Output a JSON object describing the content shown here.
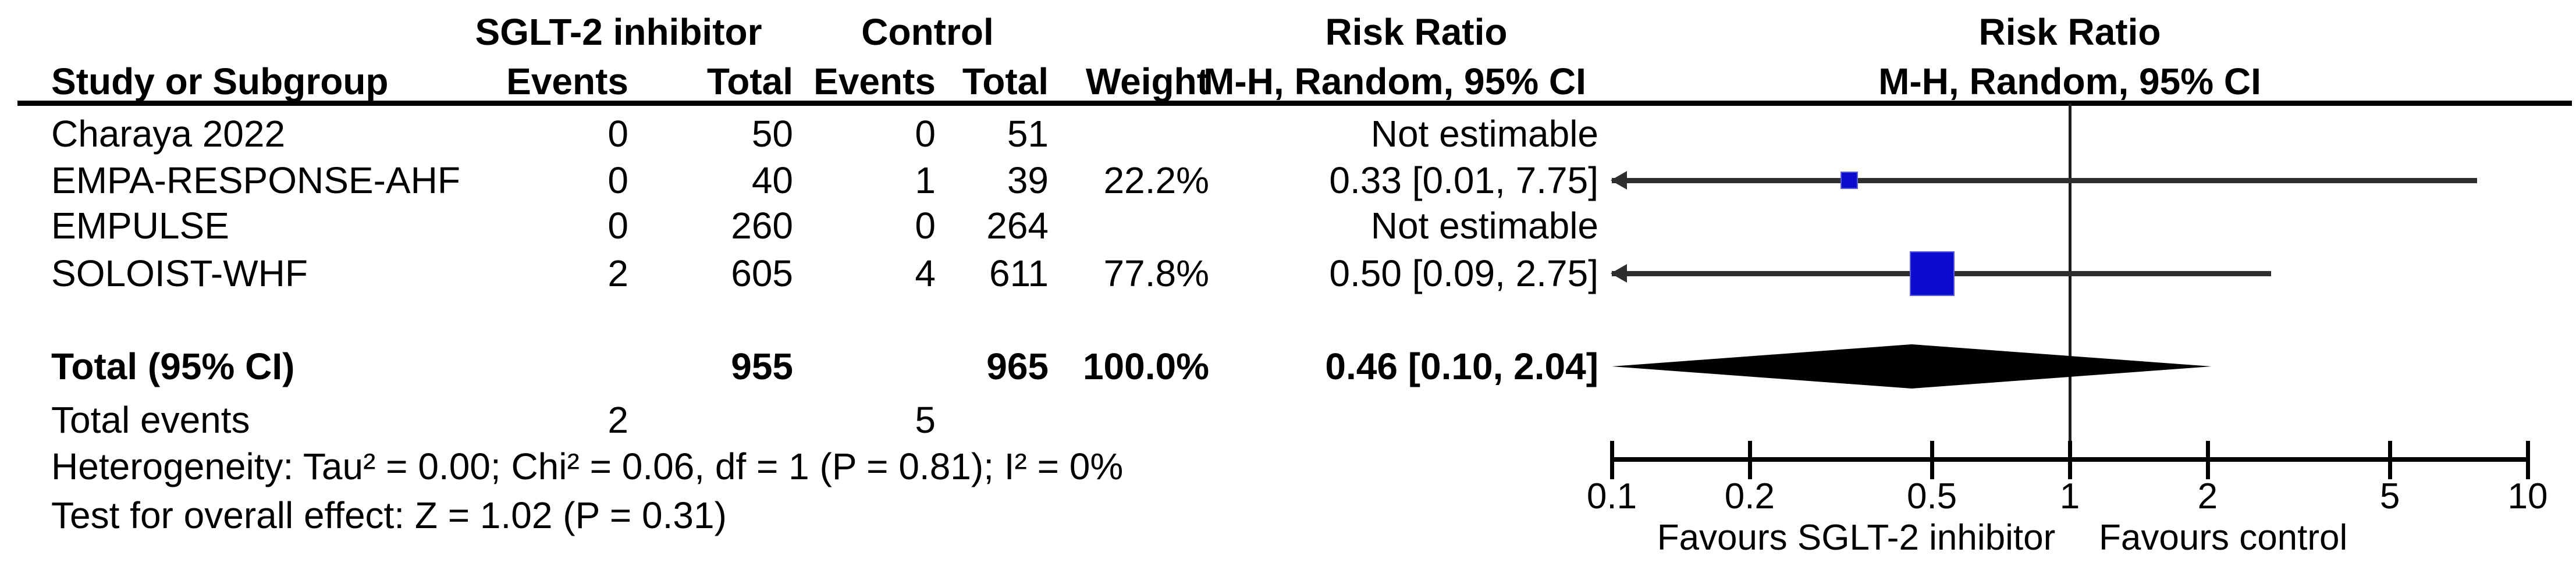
{
  "header": {
    "group1": "SGLT-2 inhibitor",
    "group2": "Control",
    "study_col": "Study or Subgroup",
    "events_col": "Events",
    "total_col": "Total",
    "weight_col": "Weight",
    "rr_title": "Risk Ratio",
    "rr_sub": "M-H, Random, 95% CI"
  },
  "chart_data": {
    "type": "forest",
    "effect_measure": "Risk Ratio",
    "method": "M-H, Random, 95% CI",
    "x_scale": "log",
    "xlim": [
      0.1,
      10
    ],
    "x_ticks": [
      0.1,
      0.2,
      0.5,
      1,
      2,
      5,
      10
    ],
    "studies": [
      {
        "name": "Charaya 2022",
        "events_tx": 0,
        "total_tx": 50,
        "events_ctrl": 0,
        "total_ctrl": 51,
        "weight_label": "",
        "weight_pct": null,
        "rr": null,
        "ci_low": null,
        "ci_high": null,
        "rr_label": "Not estimable"
      },
      {
        "name": "EMPA-RESPONSE-AHF",
        "events_tx": 0,
        "total_tx": 40,
        "events_ctrl": 1,
        "total_ctrl": 39,
        "weight_label": "22.2%",
        "weight_pct": 22.2,
        "rr": 0.33,
        "ci_low": 0.01,
        "ci_high": 7.75,
        "rr_label": "0.33 [0.01, 7.75]"
      },
      {
        "name": "EMPULSE",
        "events_tx": 0,
        "total_tx": 260,
        "events_ctrl": 0,
        "total_ctrl": 264,
        "weight_label": "",
        "weight_pct": null,
        "rr": null,
        "ci_low": null,
        "ci_high": null,
        "rr_label": "Not estimable"
      },
      {
        "name": "SOLOIST-WHF",
        "events_tx": 2,
        "total_tx": 605,
        "events_ctrl": 4,
        "total_ctrl": 611,
        "weight_label": "77.8%",
        "weight_pct": 77.8,
        "rr": 0.5,
        "ci_low": 0.09,
        "ci_high": 2.75,
        "rr_label": "0.50 [0.09, 2.75]"
      }
    ],
    "total": {
      "label": "Total (95% CI)",
      "total_tx": 955,
      "total_ctrl": 965,
      "weight_label": "100.0%",
      "rr": 0.46,
      "ci_low": 0.1,
      "ci_high": 2.04,
      "rr_label": "0.46 [0.10, 2.04]"
    },
    "total_events_label": "Total events",
    "total_events_tx": 2,
    "total_events_ctrl": 5,
    "heterogeneity_text": "Heterogeneity: Tau² = 0.00; Chi² = 0.06, df = 1 (P = 0.81); I² = 0%",
    "overall_effect_text": "Test for overall effect: Z = 1.02 (P = 0.31)",
    "favours_left": "Favours SGLT-2 inhibitor",
    "favours_right": "Favours control",
    "colors": {
      "square": "#0c0cce",
      "line": "#2e2e2e",
      "diamond": "#000000"
    }
  }
}
